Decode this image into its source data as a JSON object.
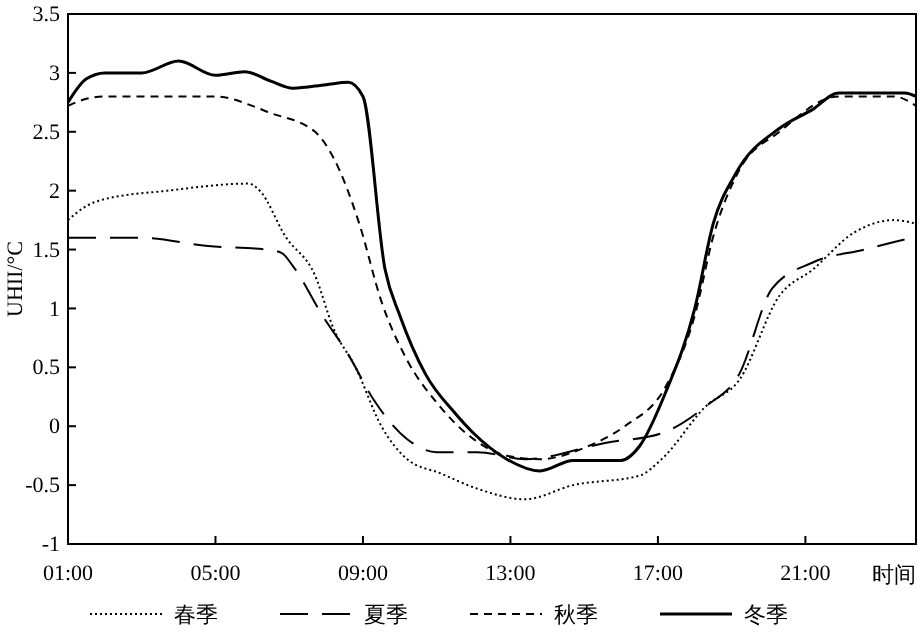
{
  "chart_data": {
    "type": "line",
    "xlabel": "时间",
    "ylabel": "UHII/°C",
    "xlim": [
      1,
      24
    ],
    "xticks": [
      {
        "value": 1,
        "label": "01:00"
      },
      {
        "value": 5,
        "label": "05:00"
      },
      {
        "value": 9,
        "label": "09:00"
      },
      {
        "value": 13,
        "label": "13:00"
      },
      {
        "value": 17,
        "label": "17:00"
      },
      {
        "value": 21,
        "label": "21:00"
      }
    ],
    "ylim": [
      -1,
      3.5
    ],
    "yticks": [
      -1,
      -0.5,
      0,
      0.5,
      1,
      1.5,
      2,
      2.5,
      3,
      3.5
    ],
    "grid": false,
    "legend": "bottom",
    "series": [
      {
        "name": "春季",
        "color": "#000000",
        "line_style": "dotted",
        "x": [
          1,
          1.5,
          1.9,
          3.7,
          5.9,
          6.2,
          6.9,
          7.7,
          8.2,
          8.8,
          9.5,
          10.2,
          11.1,
          12.1,
          13.4,
          14.7,
          16.5,
          17.1,
          18.3,
          19.2,
          20.3,
          21.2,
          22.3,
          23.4,
          24
        ],
        "values": [
          1.75,
          1.87,
          1.92,
          2.0,
          2.06,
          2.0,
          1.61,
          1.28,
          0.83,
          0.5,
          0,
          -0.28,
          -0.4,
          -0.53,
          -0.62,
          -0.5,
          -0.42,
          -0.28,
          0.17,
          0.39,
          1.11,
          1.33,
          1.64,
          1.75,
          1.72
        ]
      },
      {
        "name": "夏季",
        "color": "#000000",
        "line_style": "long-dashed",
        "x": [
          1,
          3,
          4.8,
          6.4,
          6.8,
          7.1,
          7.9,
          8.6,
          9.3,
          10.2,
          11,
          12.1,
          13.4,
          15.6,
          17.1,
          18.3,
          19.2,
          20.1,
          21.2,
          22.6,
          24
        ],
        "values": [
          1.6,
          1.6,
          1.53,
          1.5,
          1.47,
          1.36,
          0.94,
          0.61,
          0.22,
          -0.11,
          -0.22,
          -0.22,
          -0.28,
          -0.14,
          -0.06,
          0.17,
          0.44,
          1.17,
          1.39,
          1.5,
          1.61
        ]
      },
      {
        "name": "秋季",
        "color": "#000000",
        "line_style": "dashed",
        "x": [
          1,
          1.5,
          2,
          5,
          6,
          6.4,
          7.7,
          8.2,
          8.9,
          9.5,
          10.2,
          11,
          12,
          12.9,
          13.8,
          15.1,
          16.1,
          17.2,
          18,
          18.5,
          19.2,
          20.3,
          21.9,
          23.4,
          24
        ],
        "values": [
          2.72,
          2.78,
          2.8,
          2.8,
          2.72,
          2.67,
          2.5,
          2.28,
          1.72,
          1.06,
          0.56,
          0.2,
          -0.11,
          -0.25,
          -0.28,
          -0.17,
          0,
          0.33,
          0.94,
          1.61,
          2.17,
          2.5,
          2.8,
          2.8,
          2.72
        ]
      },
      {
        "name": "冬季",
        "color": "#000000",
        "line_style": "solid",
        "x": [
          1,
          1.5,
          2,
          3,
          4,
          5,
          5.8,
          6.5,
          7.1,
          8,
          8.6,
          9,
          9.6,
          10,
          10.7,
          11.5,
          12,
          12.9,
          13.8,
          14.7,
          16,
          16.5,
          17.2,
          18,
          18.5,
          19.1,
          20.3,
          21.2,
          21.9,
          23.7,
          24
        ],
        "values": [
          2.75,
          2.95,
          3.0,
          3.0,
          3.1,
          2.98,
          3.01,
          2.93,
          2.87,
          2.9,
          2.92,
          2.8,
          1.33,
          0.94,
          0.44,
          0.11,
          -0.06,
          -0.28,
          -0.38,
          -0.29,
          -0.29,
          -0.17,
          0.28,
          1.0,
          1.72,
          2.14,
          2.53,
          2.69,
          2.83,
          2.83,
          2.8
        ]
      }
    ]
  }
}
